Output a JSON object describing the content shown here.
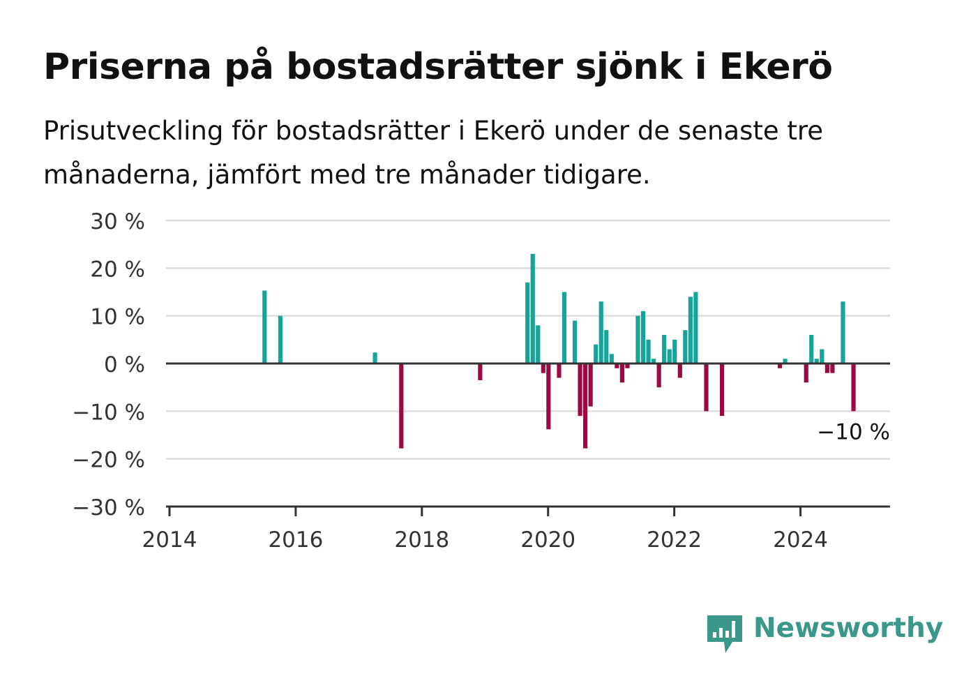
{
  "title": "Priserna på bostadsrätter sjönk i Ekerö",
  "subtitle": "Prisutveckling för bostadsrätter i Ekerö under de senaste tre månaderna, jämfört med tre månader tidigare.",
  "brand": {
    "name": "Newsworthy",
    "color": "#3a978a",
    "icon": "newsworthy-logo-icon"
  },
  "colors": {
    "positive": "#17a398",
    "negative": "#9b0a45",
    "grid": "#dddddd",
    "axis": "#333333"
  },
  "chart_data": {
    "type": "bar",
    "xlabel": "",
    "ylabel": "",
    "xlim": [
      2014.0,
      2025.42
    ],
    "ylim": [
      -30,
      30
    ],
    "grid": true,
    "xticks": [
      {
        "value": 2014,
        "label": "2014"
      },
      {
        "value": 2016,
        "label": "2016"
      },
      {
        "value": 2018,
        "label": "2018"
      },
      {
        "value": 2020,
        "label": "2020"
      },
      {
        "value": 2022,
        "label": "2022"
      },
      {
        "value": 2024,
        "label": "2024"
      }
    ],
    "yticks": [
      {
        "value": 30,
        "label": "30 %"
      },
      {
        "value": 20,
        "label": "20 %"
      },
      {
        "value": 10,
        "label": "10 %"
      },
      {
        "value": 0,
        "label": "0 %"
      },
      {
        "value": -10,
        "label": "−10 %"
      },
      {
        "value": -20,
        "label": "−20 %"
      },
      {
        "value": -30,
        "label": "−30 %"
      }
    ],
    "points": [
      {
        "x": "2015-07",
        "y": 15.3
      },
      {
        "x": "2015-10",
        "y": 10
      },
      {
        "x": "2017-04",
        "y": 2.3
      },
      {
        "x": "2017-09",
        "y": -17.8
      },
      {
        "x": "2018-12",
        "y": -3.5
      },
      {
        "x": "2019-09",
        "y": 17
      },
      {
        "x": "2019-10",
        "y": 23
      },
      {
        "x": "2019-11",
        "y": 8
      },
      {
        "x": "2019-12",
        "y": -2
      },
      {
        "x": "2020-01",
        "y": -13.8
      },
      {
        "x": "2020-03",
        "y": -3
      },
      {
        "x": "2020-04",
        "y": 15
      },
      {
        "x": "2020-06",
        "y": 9
      },
      {
        "x": "2020-07",
        "y": -11
      },
      {
        "x": "2020-08",
        "y": -17.8
      },
      {
        "x": "2020-09",
        "y": -9
      },
      {
        "x": "2020-10",
        "y": 4
      },
      {
        "x": "2020-11",
        "y": 13
      },
      {
        "x": "2020-12",
        "y": 7
      },
      {
        "x": "2021-01",
        "y": 2
      },
      {
        "x": "2021-02",
        "y": -1
      },
      {
        "x": "2021-03",
        "y": -4
      },
      {
        "x": "2021-04",
        "y": -1
      },
      {
        "x": "2021-06",
        "y": 10
      },
      {
        "x": "2021-07",
        "y": 11
      },
      {
        "x": "2021-08",
        "y": 5
      },
      {
        "x": "2021-09",
        "y": 1
      },
      {
        "x": "2021-10",
        "y": -5
      },
      {
        "x": "2021-11",
        "y": 6
      },
      {
        "x": "2021-12",
        "y": 3
      },
      {
        "x": "2022-01",
        "y": 5
      },
      {
        "x": "2022-02",
        "y": -3
      },
      {
        "x": "2022-03",
        "y": 7
      },
      {
        "x": "2022-04",
        "y": 14
      },
      {
        "x": "2022-05",
        "y": 15
      },
      {
        "x": "2022-07",
        "y": -10
      },
      {
        "x": "2022-10",
        "y": -11
      },
      {
        "x": "2023-09",
        "y": -1
      },
      {
        "x": "2023-10",
        "y": 1
      },
      {
        "x": "2024-02",
        "y": -4
      },
      {
        "x": "2024-03",
        "y": 6
      },
      {
        "x": "2024-04",
        "y": 1
      },
      {
        "x": "2024-05",
        "y": 3
      },
      {
        "x": "2024-06",
        "y": -2
      },
      {
        "x": "2024-07",
        "y": -2
      },
      {
        "x": "2024-09",
        "y": 13
      },
      {
        "x": "2024-11",
        "y": -10
      }
    ],
    "annotations": [
      {
        "x": "2024-11",
        "y": -10,
        "text": "−10 %"
      }
    ]
  }
}
